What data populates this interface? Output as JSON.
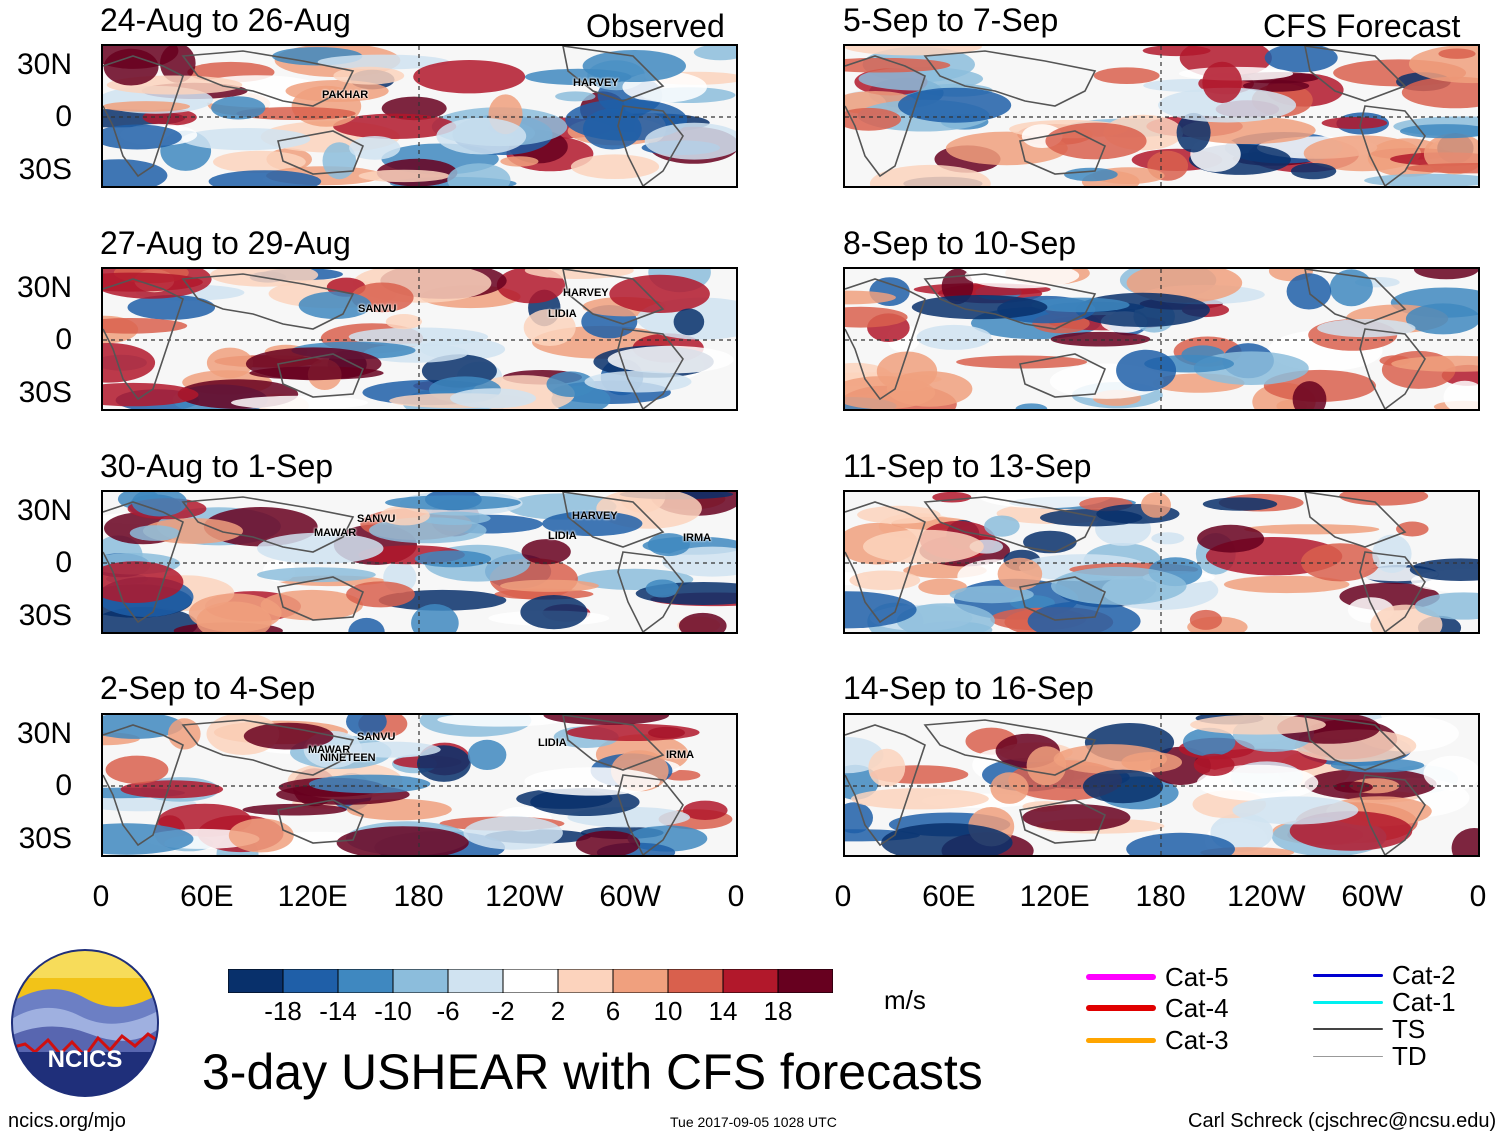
{
  "left_header": "Observed",
  "right_header": "CFS Forecast",
  "y_ticks": [
    "30N",
    "0",
    "30S"
  ],
  "x_ticks": [
    "0",
    "60E",
    "120E",
    "180",
    "120W",
    "60W",
    "0"
  ],
  "observed_panels": [
    {
      "title": "24-Aug to 26-Aug",
      "storms": [
        "PAKHAR",
        "HARVEY"
      ]
    },
    {
      "title": "27-Aug to 29-Aug",
      "storms": [
        "SANVU",
        "HARVEY",
        "LIDIA"
      ]
    },
    {
      "title": "30-Aug to 1-Sep",
      "storms": [
        "SANVU",
        "MAWAR",
        "HARVEY",
        "LIDIA",
        "IRMA"
      ]
    },
    {
      "title": "2-Sep to 4-Sep",
      "storms": [
        "SANVU",
        "MAWAR",
        "NINETEEN",
        "LIDIA",
        "IRMA"
      ]
    }
  ],
  "forecast_panels": [
    {
      "title": "5-Sep to 7-Sep"
    },
    {
      "title": "8-Sep to 10-Sep"
    },
    {
      "title": "11-Sep to 13-Sep"
    },
    {
      "title": "14-Sep to 16-Sep"
    }
  ],
  "colorbar": {
    "ticks": [
      "-18",
      "-14",
      "-10",
      "-6",
      "-2",
      "2",
      "6",
      "10",
      "14",
      "18"
    ],
    "colors": [
      "#08306b",
      "#1f5fa8",
      "#3f88c0",
      "#8cbddc",
      "#d0e3f1",
      "#ffffff",
      "#fcd3bd",
      "#f0a07e",
      "#d9604d",
      "#b2182b",
      "#67001f"
    ],
    "unit": "m/s"
  },
  "legend": {
    "items": [
      {
        "label": "Cat-5",
        "color": "#ff00ff"
      },
      {
        "label": "Cat-4",
        "color": "#e00000"
      },
      {
        "label": "Cat-3",
        "color": "#ffa500"
      },
      {
        "label": "Cat-2",
        "color": "#0000d0"
      },
      {
        "label": "Cat-1",
        "color": "#00f0f0"
      },
      {
        "label": "TS",
        "color": "#444444"
      },
      {
        "label": "TD",
        "color": "#999999"
      }
    ]
  },
  "logo_text": "NCICS",
  "main_title": "3-day USHEAR with CFS forecasts",
  "footer": {
    "left": "ncics.org/mjo",
    "center": "Tue 2017-09-05 1028 UTC",
    "right": "Carl Schreck (cjschrec@ncsu.edu)"
  }
}
